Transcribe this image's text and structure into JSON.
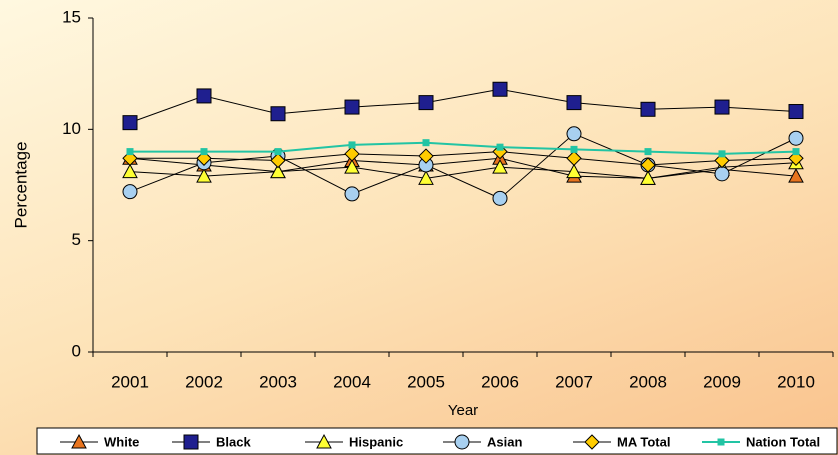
{
  "chart_data": {
    "type": "line",
    "x_label": "Year",
    "y_label": "Percentage",
    "categories": [
      "2001",
      "2002",
      "2003",
      "2004",
      "2005",
      "2006",
      "2007",
      "2008",
      "2009",
      "2010"
    ],
    "ylim": [
      0,
      15
    ],
    "yticks": [
      0,
      5,
      10,
      15
    ],
    "grid": false,
    "legend": "bottom",
    "series": [
      {
        "name": "White",
        "color": "#e8741e",
        "line_color": "#000000",
        "marker": "triangle",
        "values": [
          8.7,
          8.4,
          8.1,
          8.6,
          8.4,
          8.7,
          7.9,
          7.8,
          8.2,
          7.9
        ]
      },
      {
        "name": "Black",
        "color": "#1f1f8f",
        "line_color": "#000000",
        "marker": "square",
        "values": [
          10.3,
          11.5,
          10.7,
          11.0,
          11.2,
          11.8,
          11.2,
          10.9,
          11.0,
          10.8
        ]
      },
      {
        "name": "Hispanic",
        "color": "#ffff33",
        "line_color": "#000000",
        "marker": "triangle",
        "values": [
          8.1,
          7.9,
          8.1,
          8.3,
          7.8,
          8.3,
          8.1,
          7.8,
          8.3,
          8.5
        ]
      },
      {
        "name": "Asian",
        "color": "#a8d0f0",
        "line_color": "#000000",
        "marker": "circle",
        "values": [
          7.2,
          8.5,
          8.8,
          7.1,
          8.4,
          6.9,
          9.8,
          8.4,
          8.0,
          9.6
        ]
      },
      {
        "name": "MA Total",
        "color": "#ffcc00",
        "line_color": "#000000",
        "marker": "diamond",
        "values": [
          8.7,
          8.7,
          8.6,
          8.9,
          8.8,
          9.0,
          8.7,
          8.4,
          8.6,
          8.7
        ]
      },
      {
        "name": "Nation Total",
        "color": "#22c4a4",
        "line_color": "#22c4a4",
        "marker": "smallsquare",
        "values": [
          9.0,
          9.0,
          9.0,
          9.3,
          9.4,
          9.2,
          9.1,
          9.0,
          8.9,
          9.0
        ]
      }
    ]
  }
}
